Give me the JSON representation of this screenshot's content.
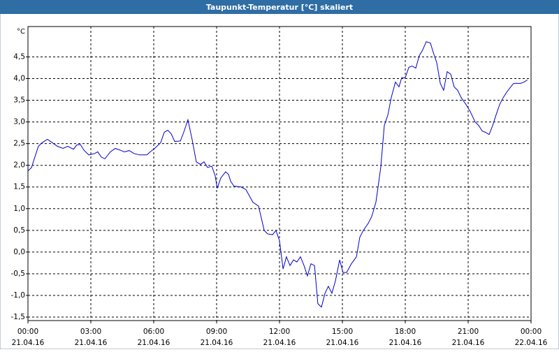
{
  "chart_data": {
    "type": "line",
    "title": "Taupunkt-Temperatur [°C] skaliert",
    "y_unit": "°C",
    "color": "#0000cc",
    "grid": true,
    "xlim": [
      0,
      24
    ],
    "ylim": [
      -1.58,
      5.2
    ],
    "xticks": [
      {
        "value": 0,
        "label": "00:00",
        "date": "21.04.16"
      },
      {
        "value": 3,
        "label": "03:00",
        "date": "21.04.16"
      },
      {
        "value": 6,
        "label": "06:00",
        "date": "21.04.16"
      },
      {
        "value": 9,
        "label": "09:00",
        "date": "21.04.16"
      },
      {
        "value": 12,
        "label": "12:00",
        "date": "21.04.16"
      },
      {
        "value": 15,
        "label": "15:00",
        "date": "21.04.16"
      },
      {
        "value": 18,
        "label": "18:00",
        "date": "21.04.16"
      },
      {
        "value": 21,
        "label": "21:00",
        "date": "21.04.16"
      },
      {
        "value": 24,
        "label": "00:00",
        "date": "22.04.16"
      }
    ],
    "yticks": [
      {
        "value": -1.5,
        "label": "-1,5"
      },
      {
        "value": -1,
        "label": "-1,0"
      },
      {
        "value": -0.5,
        "label": "-0,5"
      },
      {
        "value": 0,
        "label": "0,0"
      },
      {
        "value": 0.5,
        "label": "0,5"
      },
      {
        "value": 1,
        "label": "1,0"
      },
      {
        "value": 1.5,
        "label": "1,5"
      },
      {
        "value": 2,
        "label": "2,0"
      },
      {
        "value": 2.5,
        "label": "2,5"
      },
      {
        "value": 3,
        "label": "3,0"
      },
      {
        "value": 3.5,
        "label": "3,5"
      },
      {
        "value": 4,
        "label": "4,0"
      },
      {
        "value": 4.5,
        "label": "4,5"
      }
    ],
    "x": [
      0.0,
      0.17,
      0.33,
      0.5,
      0.67,
      0.93,
      1.17,
      1.4,
      1.67,
      1.9,
      2.17,
      2.33,
      2.5,
      2.67,
      2.9,
      3.17,
      3.33,
      3.5,
      3.67,
      3.93,
      4.17,
      4.4,
      4.6,
      4.83,
      5.07,
      5.33,
      5.67,
      5.83,
      6.07,
      6.33,
      6.5,
      6.67,
      6.83,
      7.0,
      7.27,
      7.43,
      7.63,
      7.83,
      8.03,
      8.23,
      8.4,
      8.57,
      8.77,
      8.93,
      9.03,
      9.2,
      9.43,
      9.57,
      9.67,
      9.83,
      10.17,
      10.4,
      10.73,
      11.0,
      11.27,
      11.43,
      11.67,
      11.83,
      12.0,
      12.17,
      12.33,
      12.5,
      12.67,
      12.83,
      13.0,
      13.17,
      13.33,
      13.5,
      13.67,
      13.83,
      14.0,
      14.17,
      14.33,
      14.5,
      14.67,
      14.87,
      15.03,
      15.2,
      15.43,
      15.67,
      15.83,
      16.0,
      16.23,
      16.4,
      16.6,
      16.83,
      17.0,
      17.17,
      17.33,
      17.53,
      17.7,
      17.83,
      18.0,
      18.17,
      18.33,
      18.5,
      18.67,
      18.83,
      19.0,
      19.2,
      19.33,
      19.5,
      19.67,
      19.83,
      20.0,
      20.17,
      20.33,
      20.5,
      20.67,
      20.9,
      21.1,
      21.33,
      21.5,
      21.67,
      21.83,
      22.0,
      22.17,
      22.33,
      22.5,
      22.67,
      22.83,
      23.0,
      23.17,
      23.33,
      23.5,
      23.67,
      23.83
    ],
    "values": [
      1.87,
      1.95,
      2.19,
      2.44,
      2.52,
      2.6,
      2.52,
      2.44,
      2.39,
      2.44,
      2.37,
      2.47,
      2.48,
      2.35,
      2.24,
      2.27,
      2.31,
      2.19,
      2.15,
      2.31,
      2.39,
      2.35,
      2.31,
      2.34,
      2.27,
      2.24,
      2.24,
      2.31,
      2.4,
      2.52,
      2.76,
      2.81,
      2.73,
      2.55,
      2.56,
      2.76,
      3.05,
      2.6,
      2.08,
      2.02,
      2.08,
      1.95,
      1.98,
      1.76,
      1.47,
      1.71,
      1.85,
      1.79,
      1.63,
      1.52,
      1.5,
      1.44,
      1.15,
      1.06,
      0.5,
      0.42,
      0.4,
      0.5,
      0.26,
      -0.39,
      -0.11,
      -0.31,
      -0.18,
      -0.23,
      -0.11,
      -0.31,
      -0.55,
      -0.27,
      -0.31,
      -1.19,
      -1.27,
      -0.95,
      -0.79,
      -0.95,
      -0.66,
      -0.18,
      -0.47,
      -0.47,
      -0.27,
      -0.11,
      0.34,
      0.5,
      0.66,
      0.82,
      1.15,
      1.95,
      2.92,
      3.16,
      3.56,
      3.92,
      3.81,
      4.02,
      4.02,
      4.26,
      4.29,
      4.24,
      4.53,
      4.66,
      4.85,
      4.82,
      4.61,
      4.37,
      3.89,
      3.73,
      4.16,
      4.1,
      3.81,
      3.73,
      3.56,
      3.4,
      3.24,
      3.0,
      2.92,
      2.79,
      2.76,
      2.71,
      2.92,
      3.16,
      3.4,
      3.56,
      3.68,
      3.79,
      3.89,
      3.89,
      3.89,
      3.92,
      3.97
    ]
  }
}
